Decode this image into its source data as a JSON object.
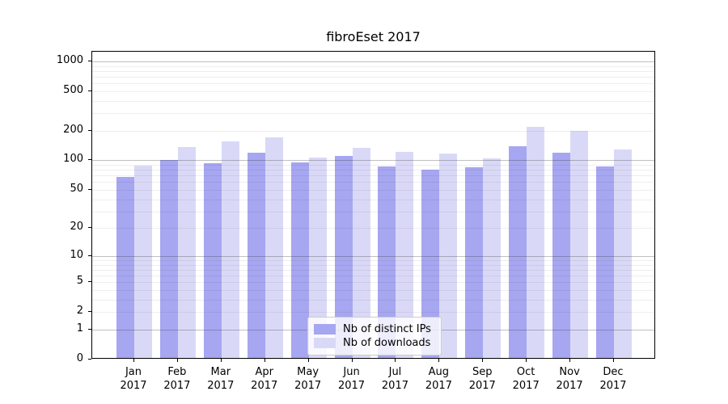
{
  "title": "fibroEset 2017",
  "legend": {
    "items": [
      {
        "label": "Nb of distinct IPs",
        "color": "#a6a6f1"
      },
      {
        "label": "Nb of downloads",
        "color": "#d9d9f7"
      }
    ]
  },
  "chart_data": {
    "type": "bar",
    "title": "fibroEset 2017",
    "categories": [
      "Jan",
      "Feb",
      "Mar",
      "Apr",
      "May",
      "Jun",
      "Jul",
      "Aug",
      "Sep",
      "Oct",
      "Nov",
      "Dec"
    ],
    "category_year": "2017",
    "series": [
      {
        "name": "Nb of distinct IPs",
        "color": "#a6a6f1",
        "values": [
          65,
          98,
          90,
          115,
          92,
          107,
          83,
          77,
          82,
          133,
          116,
          83
        ]
      },
      {
        "name": "Nb of downloads",
        "color": "#d9d9f7",
        "values": [
          85,
          132,
          150,
          165,
          103,
          130,
          117,
          113,
          101,
          210,
          192,
          123
        ]
      }
    ],
    "xlabel": "",
    "ylabel": "",
    "yticks": [
      0,
      1,
      2,
      5,
      10,
      20,
      50,
      100,
      200,
      500,
      1000
    ],
    "ylim": [
      0,
      1250
    ],
    "yscale": "log1p",
    "grid": "both",
    "grid_major_at": [
      1,
      10,
      100,
      1000
    ],
    "legend_position": "lower-center"
  }
}
